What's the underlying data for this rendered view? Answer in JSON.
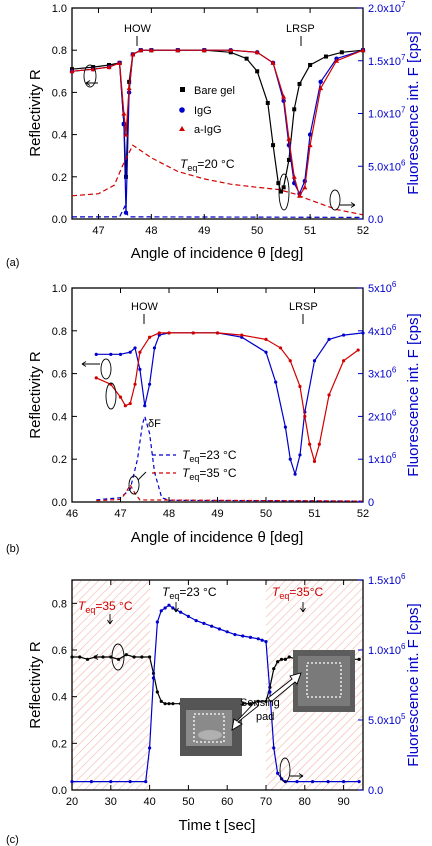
{
  "chart_data": [
    {
      "type": "line",
      "panel_label": "(a)",
      "xlabel": "Angle of incidence θ [deg]",
      "ylabel": "Reflectivity R",
      "y2label": "Fluorescence int. F [cps]",
      "xlim": [
        46.5,
        52
      ],
      "ylim": [
        0,
        1.0
      ],
      "y2lim": [
        0,
        20000000
      ],
      "xticks": [
        "47",
        "48",
        "49",
        "50",
        "51",
        "52"
      ],
      "yticks": [
        "0.0",
        "0.2",
        "0.4",
        "0.6",
        "0.8",
        "1.0"
      ],
      "y2ticks": [
        "0.0",
        "5.0x10^6",
        "1.0x10^7",
        "1.5x10^7",
        "2.0x10^7"
      ],
      "annotations": {
        "how": "HOW",
        "lrsp": "LRSP",
        "temp_prefix": "T",
        "temp_sub": "eq",
        "temp_suffix": "=20 °C"
      },
      "legend": [
        "Bare gel",
        "IgG",
        "a-IgG"
      ],
      "series": [
        {
          "name": "Bare gel",
          "color": "#000000",
          "axis": "left",
          "marker": "square",
          "x": [
            46.5,
            46.9,
            47.2,
            47.4,
            47.48,
            47.52,
            47.58,
            47.65,
            47.8,
            48.0,
            48.5,
            49.0,
            49.5,
            49.8,
            50.0,
            50.2,
            50.3,
            50.4,
            50.45,
            50.5,
            50.6,
            50.7,
            50.8,
            51.0,
            51.3,
            51.6,
            52.0
          ],
          "y": [
            0.71,
            0.72,
            0.73,
            0.74,
            0.45,
            0.2,
            0.65,
            0.78,
            0.8,
            0.8,
            0.8,
            0.8,
            0.79,
            0.76,
            0.7,
            0.55,
            0.35,
            0.17,
            0.13,
            0.15,
            0.28,
            0.52,
            0.64,
            0.73,
            0.77,
            0.79,
            0.8
          ]
        },
        {
          "name": "IgG",
          "color": "#0000cc",
          "axis": "left",
          "marker": "circle",
          "x": [
            46.5,
            46.9,
            47.2,
            47.4,
            47.48,
            47.52,
            47.58,
            47.65,
            47.8,
            48.0,
            48.5,
            49.0,
            49.5,
            50.0,
            50.3,
            50.5,
            50.6,
            50.7,
            50.8,
            50.9,
            51.0,
            51.2,
            51.5,
            52.0
          ],
          "y": [
            0.7,
            0.71,
            0.72,
            0.74,
            0.45,
            0.03,
            0.6,
            0.78,
            0.8,
            0.8,
            0.8,
            0.8,
            0.8,
            0.79,
            0.74,
            0.56,
            0.35,
            0.17,
            0.12,
            0.18,
            0.4,
            0.65,
            0.76,
            0.8
          ]
        },
        {
          "name": "a-IgG",
          "color": "#d00000",
          "axis": "left",
          "marker": "triangle",
          "x": [
            46.5,
            46.9,
            47.2,
            47.4,
            47.48,
            47.52,
            47.58,
            47.65,
            47.8,
            48.0,
            48.5,
            49.0,
            49.5,
            50.0,
            50.3,
            50.5,
            50.6,
            50.7,
            50.8,
            50.9,
            51.0,
            51.2,
            51.5,
            52.0
          ],
          "y": [
            0.7,
            0.71,
            0.72,
            0.74,
            0.5,
            0.4,
            0.62,
            0.78,
            0.8,
            0.8,
            0.8,
            0.8,
            0.8,
            0.79,
            0.74,
            0.58,
            0.38,
            0.2,
            0.11,
            0.15,
            0.35,
            0.62,
            0.75,
            0.8
          ]
        },
        {
          "name": "F a-IgG",
          "color": "#d00000",
          "axis": "right",
          "dash": "5,3",
          "x": [
            46.5,
            47.0,
            47.3,
            47.45,
            47.55,
            47.65,
            48.0,
            48.5,
            49.0,
            49.5,
            50.0,
            50.4,
            50.7,
            51.0,
            51.5,
            52.0
          ],
          "y": [
            2200000,
            2400000,
            3200000,
            5000000,
            6000000,
            7000000,
            5800000,
            4500000,
            3800000,
            3300000,
            3000000,
            2800000,
            2400000,
            1800000,
            900000,
            400000
          ]
        },
        {
          "name": "F IgG",
          "color": "#0000cc",
          "axis": "right",
          "dash": "5,3",
          "x": [
            46.5,
            47.4,
            47.5,
            47.55,
            47.6,
            48.0,
            50.0,
            52.0
          ],
          "y": [
            200000,
            200000,
            1200000,
            400000,
            200000,
            200000,
            180000,
            150000
          ]
        }
      ]
    },
    {
      "type": "line",
      "panel_label": "(b)",
      "xlabel": "Angle of incidence θ [deg]",
      "ylabel": "Reflectivity R",
      "y2label": "Fluorescence int. F [cps]",
      "xlim": [
        46,
        52
      ],
      "ylim": [
        0,
        1.0
      ],
      "y2lim": [
        0,
        5000000
      ],
      "xticks": [
        "46",
        "47",
        "48",
        "49",
        "50",
        "51",
        "52"
      ],
      "yticks": [
        "0.0",
        "0.2",
        "0.4",
        "0.6",
        "0.8",
        "1.0"
      ],
      "y2ticks": [
        "0",
        "1x10^6",
        "2x10^6",
        "3x10^6",
        "4x10^6",
        "5x10^6"
      ],
      "annotations": {
        "how": "HOW",
        "lrsp": "LRSP",
        "deltaF": "δF"
      },
      "legend": [
        {
          "prefix": "T",
          "sub": "eq",
          "suffix": "=23 °C"
        },
        {
          "prefix": "T",
          "sub": "eq",
          "suffix": "=35 °C"
        }
      ],
      "series": [
        {
          "name": "23 °C",
          "color": "#0000cc",
          "axis": "left",
          "marker": "dot",
          "x": [
            46.5,
            46.8,
            47.0,
            47.2,
            47.3,
            47.4,
            47.5,
            47.6,
            47.7,
            47.8,
            48.0,
            48.5,
            49.0,
            49.5,
            50.0,
            50.2,
            50.4,
            50.5,
            50.6,
            50.7,
            50.8,
            51.0,
            51.3,
            51.6,
            52.0
          ],
          "y": [
            0.69,
            0.69,
            0.69,
            0.7,
            0.72,
            0.62,
            0.45,
            0.55,
            0.72,
            0.78,
            0.79,
            0.79,
            0.79,
            0.77,
            0.7,
            0.56,
            0.35,
            0.2,
            0.13,
            0.22,
            0.42,
            0.66,
            0.76,
            0.78,
            0.79
          ]
        },
        {
          "name": "35 °C",
          "color": "#d00000",
          "axis": "left",
          "marker": "dot",
          "x": [
            46.5,
            46.8,
            47.0,
            47.1,
            47.2,
            47.3,
            47.4,
            47.6,
            47.8,
            48.0,
            48.5,
            49.0,
            49.5,
            50.0,
            50.3,
            50.5,
            50.7,
            50.8,
            50.9,
            51.0,
            51.1,
            51.3,
            51.6,
            51.9
          ],
          "y": [
            0.58,
            0.55,
            0.49,
            0.45,
            0.46,
            0.55,
            0.7,
            0.77,
            0.79,
            0.79,
            0.79,
            0.79,
            0.78,
            0.76,
            0.72,
            0.66,
            0.54,
            0.4,
            0.27,
            0.19,
            0.27,
            0.5,
            0.66,
            0.71
          ]
        },
        {
          "name": "F 23",
          "color": "#0000cc",
          "axis": "right",
          "dash": "4,3",
          "x": [
            46.5,
            47.0,
            47.2,
            47.35,
            47.45,
            47.5,
            47.6,
            47.7,
            47.85,
            48.0,
            52.0
          ],
          "y": [
            50000,
            100000,
            300000,
            1000000,
            1800000,
            2000000,
            1600000,
            700000,
            100000,
            40000,
            20000
          ]
        },
        {
          "name": "F 35",
          "color": "#d00000",
          "axis": "right",
          "dash": "4,3",
          "x": [
            46.5,
            47.0,
            47.1,
            47.2,
            47.3,
            47.4,
            52.0
          ],
          "y": [
            30000,
            60000,
            200000,
            400000,
            200000,
            50000,
            20000
          ]
        }
      ]
    },
    {
      "type": "line",
      "panel_label": "(c)",
      "xlabel": "Time t [sec]",
      "ylabel": "Reflectivity R",
      "y2label": "Fluorescence int. F [cps]",
      "xlim": [
        20,
        95
      ],
      "ylim": [
        0,
        0.9
      ],
      "y2lim": [
        0,
        1500000
      ],
      "xticks": [
        "20",
        "30",
        "40",
        "50",
        "60",
        "70",
        "80",
        "90"
      ],
      "yticks": [
        "0.0",
        "0.2",
        "0.4",
        "0.6",
        "0.8"
      ],
      "y2ticks": [
        "0.0",
        "5.0x10^5",
        "1.0x10^6",
        "1.5x10^6"
      ],
      "annotations": {
        "t1": {
          "prefix": "T",
          "sub": "eq",
          "suffix": "=35 °C"
        },
        "t2": {
          "prefix": "T",
          "sub": "eq",
          "suffix": "=23 °C"
        },
        "t3": {
          "prefix": "T",
          "sub": "eq",
          "suffix": "=35°C"
        },
        "sensing_pad": [
          "Sensing",
          "pad"
        ]
      },
      "series": [
        {
          "name": "R",
          "color": "#000000",
          "axis": "left",
          "marker": "dot",
          "x": [
            20,
            22,
            24,
            26,
            28,
            30,
            32,
            34,
            36,
            38,
            40,
            41,
            42,
            43,
            44,
            45,
            46,
            48,
            50,
            52,
            54,
            56,
            58,
            60,
            62,
            64,
            66,
            68,
            70,
            71,
            72,
            73,
            74,
            75,
            76,
            78,
            80,
            82,
            84,
            86,
            88,
            90,
            92,
            94
          ],
          "y": [
            0.57,
            0.57,
            0.56,
            0.57,
            0.57,
            0.57,
            0.56,
            0.58,
            0.57,
            0.57,
            0.57,
            0.5,
            0.42,
            0.38,
            0.37,
            0.37,
            0.37,
            0.37,
            0.37,
            0.37,
            0.38,
            0.37,
            0.37,
            0.37,
            0.37,
            0.37,
            0.37,
            0.38,
            0.38,
            0.44,
            0.52,
            0.55,
            0.56,
            0.56,
            0.57,
            0.56,
            0.56,
            0.57,
            0.56,
            0.56,
            0.56,
            0.57,
            0.56,
            0.56
          ]
        },
        {
          "name": "F",
          "color": "#0000cc",
          "axis": "right",
          "marker": "dot",
          "x": [
            20,
            25,
            30,
            35,
            39,
            40,
            41,
            42,
            43,
            44,
            45,
            46,
            48,
            50,
            52,
            54,
            56,
            58,
            60,
            62,
            64,
            66,
            68,
            69,
            70,
            71,
            72,
            73,
            74,
            75,
            78,
            82,
            86,
            90,
            94
          ],
          "y": [
            60000,
            60000,
            60000,
            60000,
            60000,
            300000,
            800000,
            1200000,
            1280000,
            1300000,
            1320000,
            1300000,
            1270000,
            1240000,
            1210000,
            1190000,
            1170000,
            1150000,
            1130000,
            1110000,
            1100000,
            1090000,
            1080000,
            1070000,
            1060000,
            700000,
            300000,
            120000,
            80000,
            60000,
            60000,
            60000,
            60000,
            60000,
            60000
          ]
        }
      ]
    }
  ]
}
